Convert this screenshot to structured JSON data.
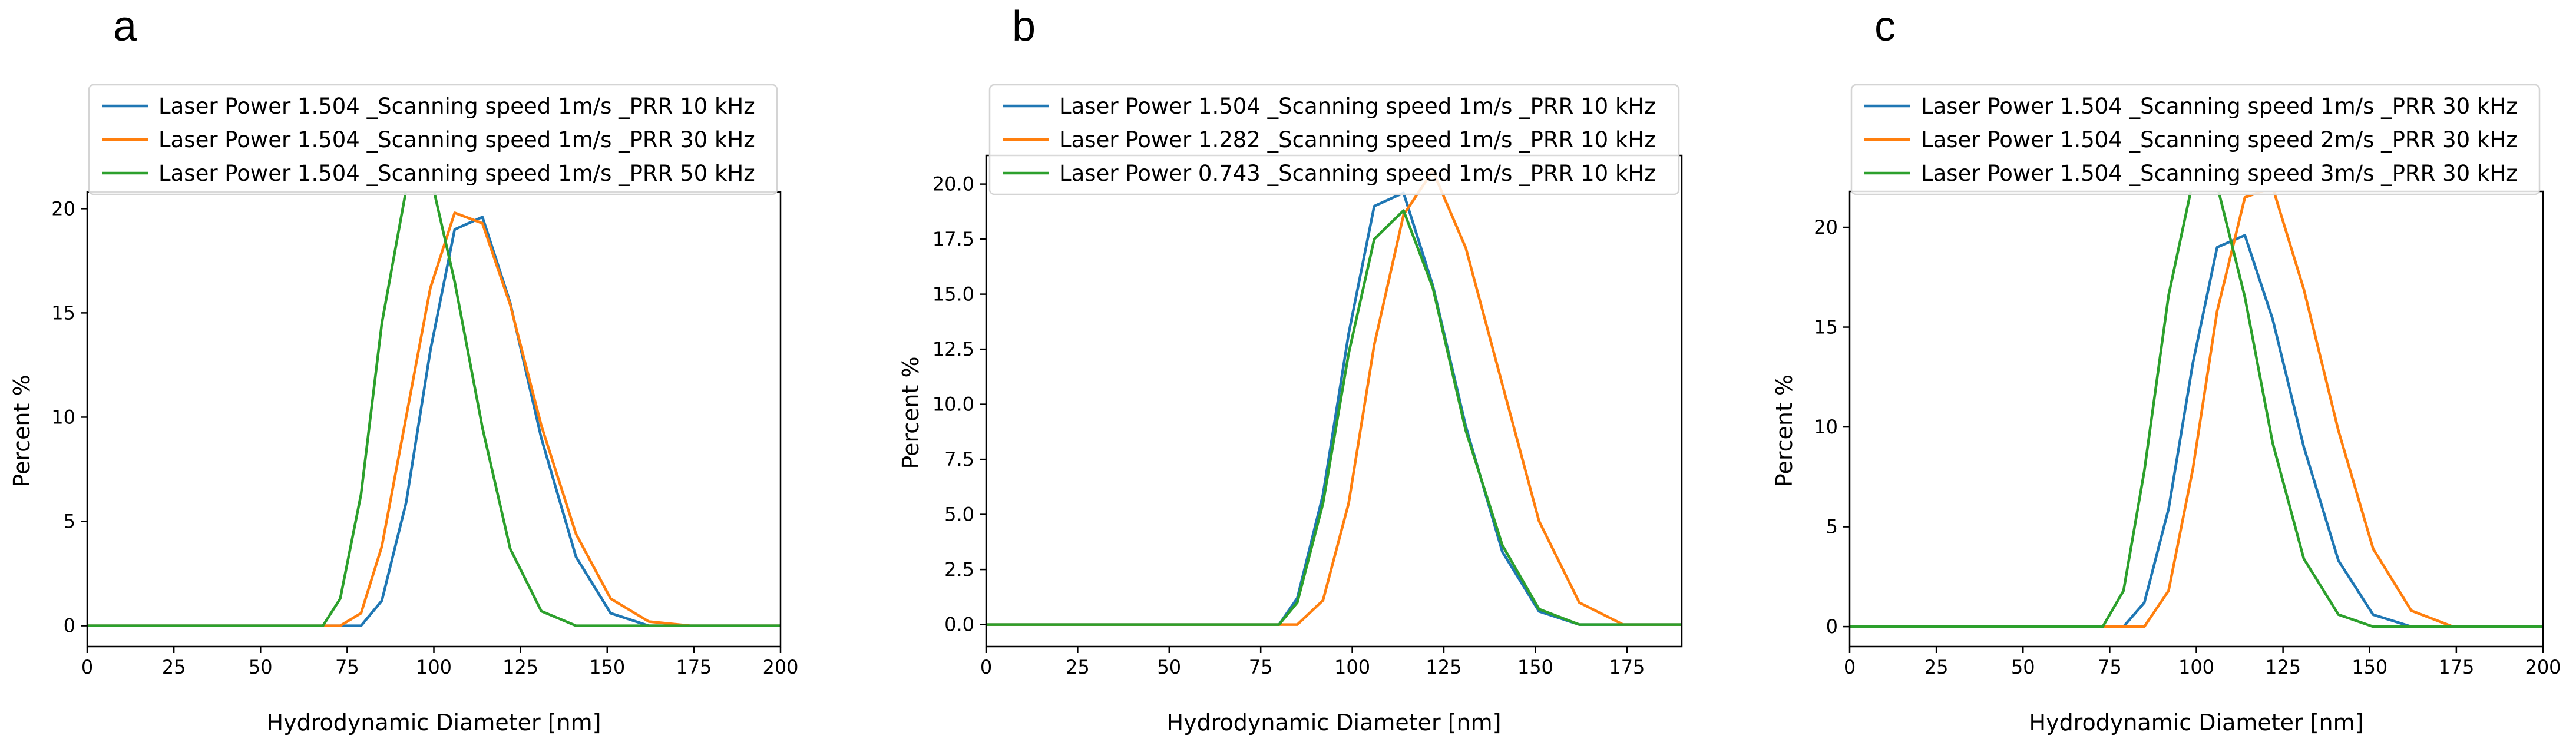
{
  "figure": {
    "panels": [
      {
        "label": "a"
      },
      {
        "label": "b"
      },
      {
        "label": "c"
      }
    ]
  },
  "colors": {
    "blue": "#1f77b4",
    "orange": "#ff7f0e",
    "green": "#2ca02c"
  },
  "chart_data": [
    {
      "type": "line",
      "panel": "a",
      "title": "",
      "xlabel": "Hydrodynamic Diameter [nm]",
      "ylabel": "Percent %",
      "xlim": [
        0,
        200
      ],
      "ylim": [
        -1.0,
        20.8
      ],
      "xticks": [
        0,
        25,
        50,
        75,
        100,
        125,
        150,
        175,
        200
      ],
      "yticks": [
        0,
        5,
        10,
        15,
        20
      ],
      "ytick_labels": [
        "0",
        "5",
        "10",
        "15",
        "20"
      ],
      "legend_loc": "top",
      "series": [
        {
          "name": "Laser Power 1.504 _Scanning speed 1m/s _PRR 10 kHz",
          "color": "#1f77b4",
          "x": [
            0,
            68,
            73,
            79,
            85,
            92,
            99,
            106,
            114,
            122,
            131,
            141,
            151,
            162,
            174,
            200
          ],
          "y": [
            0,
            0,
            0,
            0,
            1.2,
            5.9,
            13.2,
            19.0,
            19.6,
            15.5,
            9.0,
            3.3,
            0.6,
            0,
            0,
            0
          ]
        },
        {
          "name": "Laser Power 1.504 _Scanning speed 1m/s _PRR 30 kHz",
          "color": "#ff7f0e",
          "x": [
            0,
            68,
            73,
            79,
            85,
            92,
            99,
            106,
            114,
            122,
            131,
            141,
            151,
            162,
            174,
            200
          ],
          "y": [
            0,
            0,
            0,
            0.6,
            3.8,
            10.0,
            16.2,
            19.8,
            19.3,
            15.4,
            9.6,
            4.4,
            1.3,
            0.2,
            0,
            0
          ]
        },
        {
          "name": "Laser Power 1.504 _Scanning speed 1m/s _PRR 50 kHz",
          "color": "#2ca02c",
          "x": [
            0,
            68,
            73,
            79,
            85,
            92,
            99,
            106,
            114,
            122,
            131,
            141,
            151,
            162,
            174,
            200
          ],
          "y": [
            0,
            0,
            1.3,
            6.3,
            14.5,
            20.9,
            21.6,
            16.5,
            9.5,
            3.7,
            0.7,
            0,
            0,
            0,
            0,
            0
          ]
        }
      ]
    },
    {
      "type": "line",
      "panel": "b",
      "title": "",
      "xlabel": "Hydrodynamic Diameter [nm]",
      "ylabel": "Percent %",
      "xlim": [
        0,
        190
      ],
      "ylim": [
        -1.0,
        21.3
      ],
      "xticks": [
        0,
        25,
        50,
        75,
        100,
        125,
        150,
        175
      ],
      "yticks": [
        0,
        2.5,
        5,
        7.5,
        10,
        12.5,
        15,
        17.5,
        20
      ],
      "ytick_labels": [
        "0.0",
        "2.5",
        "5.0",
        "7.5",
        "10.0",
        "12.5",
        "15.0",
        "17.5",
        "20.0"
      ],
      "legend_loc": "top",
      "series": [
        {
          "name": "Laser Power 1.504 _Scanning speed 1m/s _PRR 10 kHz",
          "color": "#1f77b4",
          "x": [
            0,
            80,
            85,
            92,
            99,
            106,
            114,
            122,
            131,
            141,
            151,
            162,
            174,
            190
          ],
          "y": [
            0,
            0,
            1.2,
            5.9,
            13.2,
            19.0,
            19.6,
            15.4,
            9.0,
            3.3,
            0.6,
            0,
            0,
            0
          ]
        },
        {
          "name": "Laser Power 1.282 _Scanning speed 1m/s _PRR 10 kHz",
          "color": "#ff7f0e",
          "x": [
            0,
            85,
            92,
            99,
            106,
            114,
            122,
            131,
            141,
            151,
            162,
            174,
            190
          ],
          "y": [
            0,
            0,
            1.1,
            5.5,
            12.7,
            18.6,
            20.6,
            17.1,
            10.9,
            4.7,
            1.0,
            0,
            0
          ]
        },
        {
          "name": "Laser Power 0.743 _Scanning speed 1m/s _PRR 10 kHz",
          "color": "#2ca02c",
          "x": [
            0,
            80,
            85,
            92,
            99,
            106,
            114,
            122,
            131,
            141,
            151,
            162,
            174,
            190
          ],
          "y": [
            0,
            0,
            1.0,
            5.5,
            12.3,
            17.5,
            18.8,
            15.3,
            8.8,
            3.6,
            0.7,
            0,
            0,
            0
          ]
        }
      ]
    },
    {
      "type": "line",
      "panel": "c",
      "title": "",
      "xlabel": "Hydrodynamic Diameter [nm]",
      "ylabel": "Percent %",
      "xlim": [
        0,
        200
      ],
      "ylim": [
        -1.0,
        21.8
      ],
      "xticks": [
        0,
        25,
        50,
        75,
        100,
        125,
        150,
        175,
        200
      ],
      "yticks": [
        0,
        5,
        10,
        15,
        20
      ],
      "ytick_labels": [
        "0",
        "5",
        "10",
        "15",
        "20"
      ],
      "legend_loc": "top",
      "series": [
        {
          "name": "Laser Power 1.504 _Scanning speed 1m/s _PRR 30 kHz",
          "color": "#1f77b4",
          "x": [
            0,
            73,
            79,
            85,
            92,
            99,
            106,
            114,
            122,
            131,
            141,
            151,
            162,
            174,
            200
          ],
          "y": [
            0,
            0,
            0,
            1.2,
            5.9,
            13.2,
            19.0,
            19.6,
            15.4,
            9.0,
            3.3,
            0.6,
            0,
            0,
            0
          ]
        },
        {
          "name": "Laser Power 1.504 _Scanning speed 2m/s _PRR 30 kHz",
          "color": "#ff7f0e",
          "x": [
            0,
            79,
            85,
            92,
            99,
            106,
            114,
            122,
            131,
            141,
            151,
            162,
            174,
            200
          ],
          "y": [
            0,
            0,
            0,
            1.8,
            7.9,
            15.8,
            21.5,
            22.0,
            16.9,
            9.8,
            3.9,
            0.8,
            0,
            0
          ]
        },
        {
          "name": "Laser Power 1.504 _Scanning speed 3m/s _PRR 30 kHz",
          "color": "#2ca02c",
          "x": [
            0,
            73,
            79,
            85,
            92,
            99,
            106,
            114,
            122,
            131,
            141,
            151,
            162,
            174,
            200
          ],
          "y": [
            0,
            0,
            1.8,
            7.8,
            16.6,
            22.3,
            22.1,
            16.5,
            9.2,
            3.4,
            0.6,
            0,
            0,
            0,
            0
          ]
        }
      ]
    }
  ]
}
